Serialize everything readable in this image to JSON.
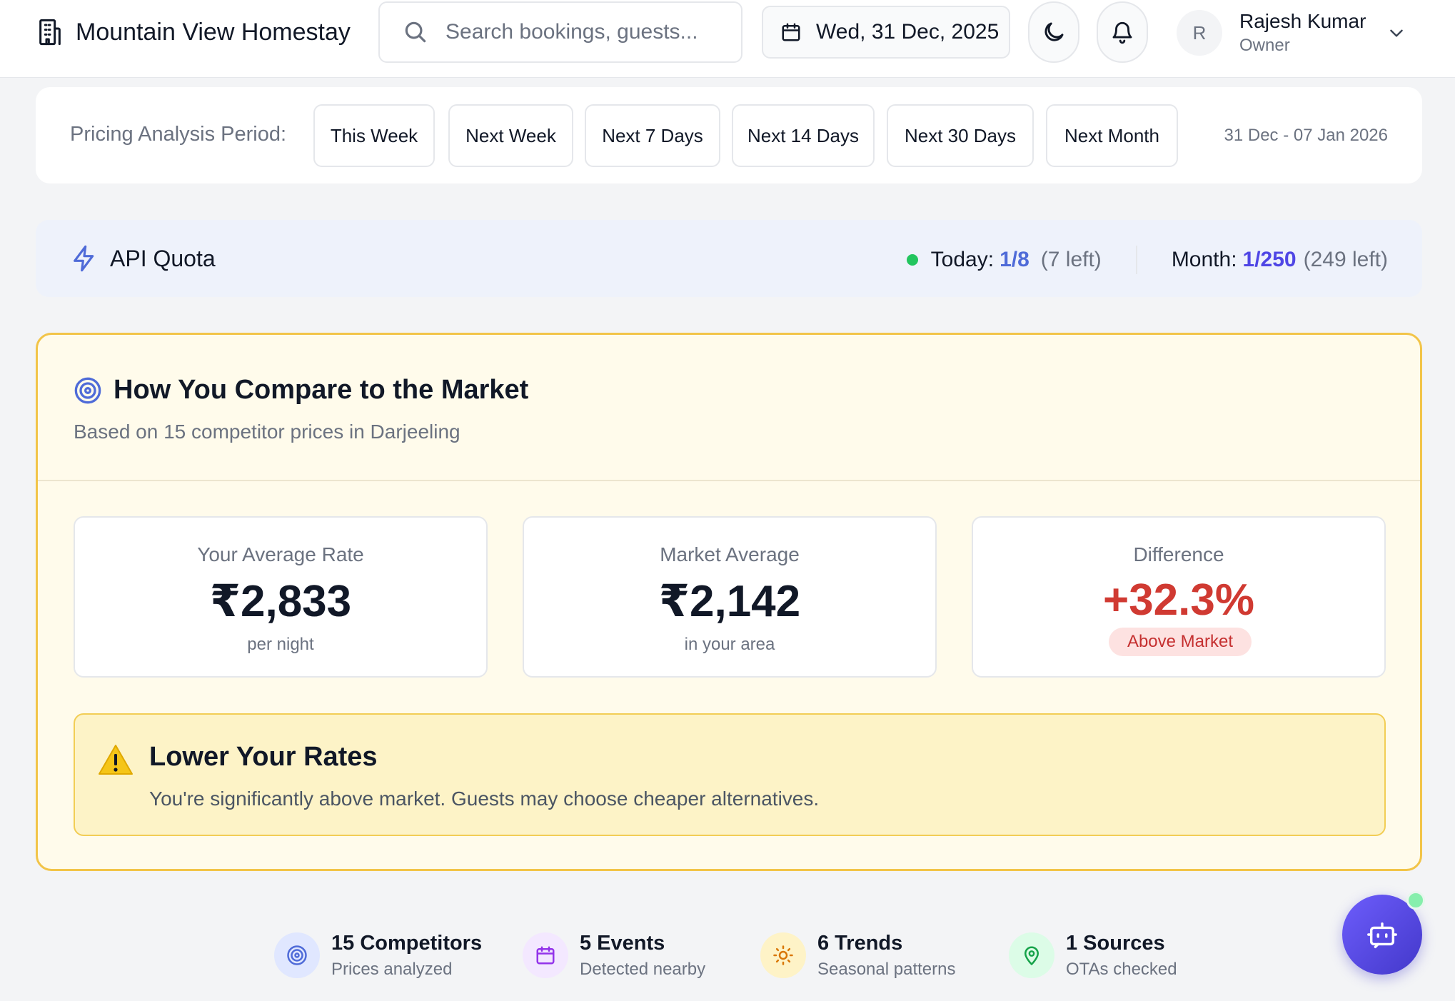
{
  "header": {
    "app_name": "Mountain View Homestay",
    "search_placeholder": "Search bookings, guests...",
    "date": "Wed, 31 Dec, 2025",
    "user": {
      "initial": "R",
      "name": "Rajesh Kumar",
      "role": "Owner"
    }
  },
  "period": {
    "label": "Pricing Analysis Period:",
    "options": [
      "This Week",
      "Next Week",
      "Next 7 Days",
      "Next 14 Days",
      "Next 30 Days",
      "Next Month"
    ],
    "range": "31 Dec - 07 Jan 2026"
  },
  "quota": {
    "title": "API Quota",
    "today_label": "Today:",
    "today_value": "1/8",
    "today_left": "(7 left)",
    "month_label": "Month:",
    "month_value": "1/250",
    "month_left": "(249 left)"
  },
  "compare": {
    "title": "How You Compare to the Market",
    "subtitle": "Based on 15 competitor prices in Darjeeling",
    "your_rate": {
      "label": "Your Average Rate",
      "value": "₹2,833",
      "unit": "per night"
    },
    "market_avg": {
      "label": "Market Average",
      "value": "₹2,142",
      "unit": "in your area"
    },
    "difference": {
      "label": "Difference",
      "value": "+32.3%",
      "badge": "Above Market"
    },
    "warning": {
      "title": "Lower Your Rates",
      "text": "You're significantly above market. Guests may choose cheaper alternatives."
    }
  },
  "stats": [
    {
      "title": "15 Competitors",
      "subtitle": "Prices analyzed",
      "icon": "target-icon"
    },
    {
      "title": "5 Events",
      "subtitle": "Detected nearby",
      "icon": "calendar-icon"
    },
    {
      "title": "6 Trends",
      "subtitle": "Seasonal patterns",
      "icon": "sun-icon"
    },
    {
      "title": "1 Sources",
      "subtitle": "OTAs checked",
      "icon": "map-pin-icon"
    }
  ],
  "colors": {
    "accent": "#4f46e5",
    "negative": "#d03a32",
    "warning_border": "#f2c448",
    "status_online": "#22c55e"
  }
}
